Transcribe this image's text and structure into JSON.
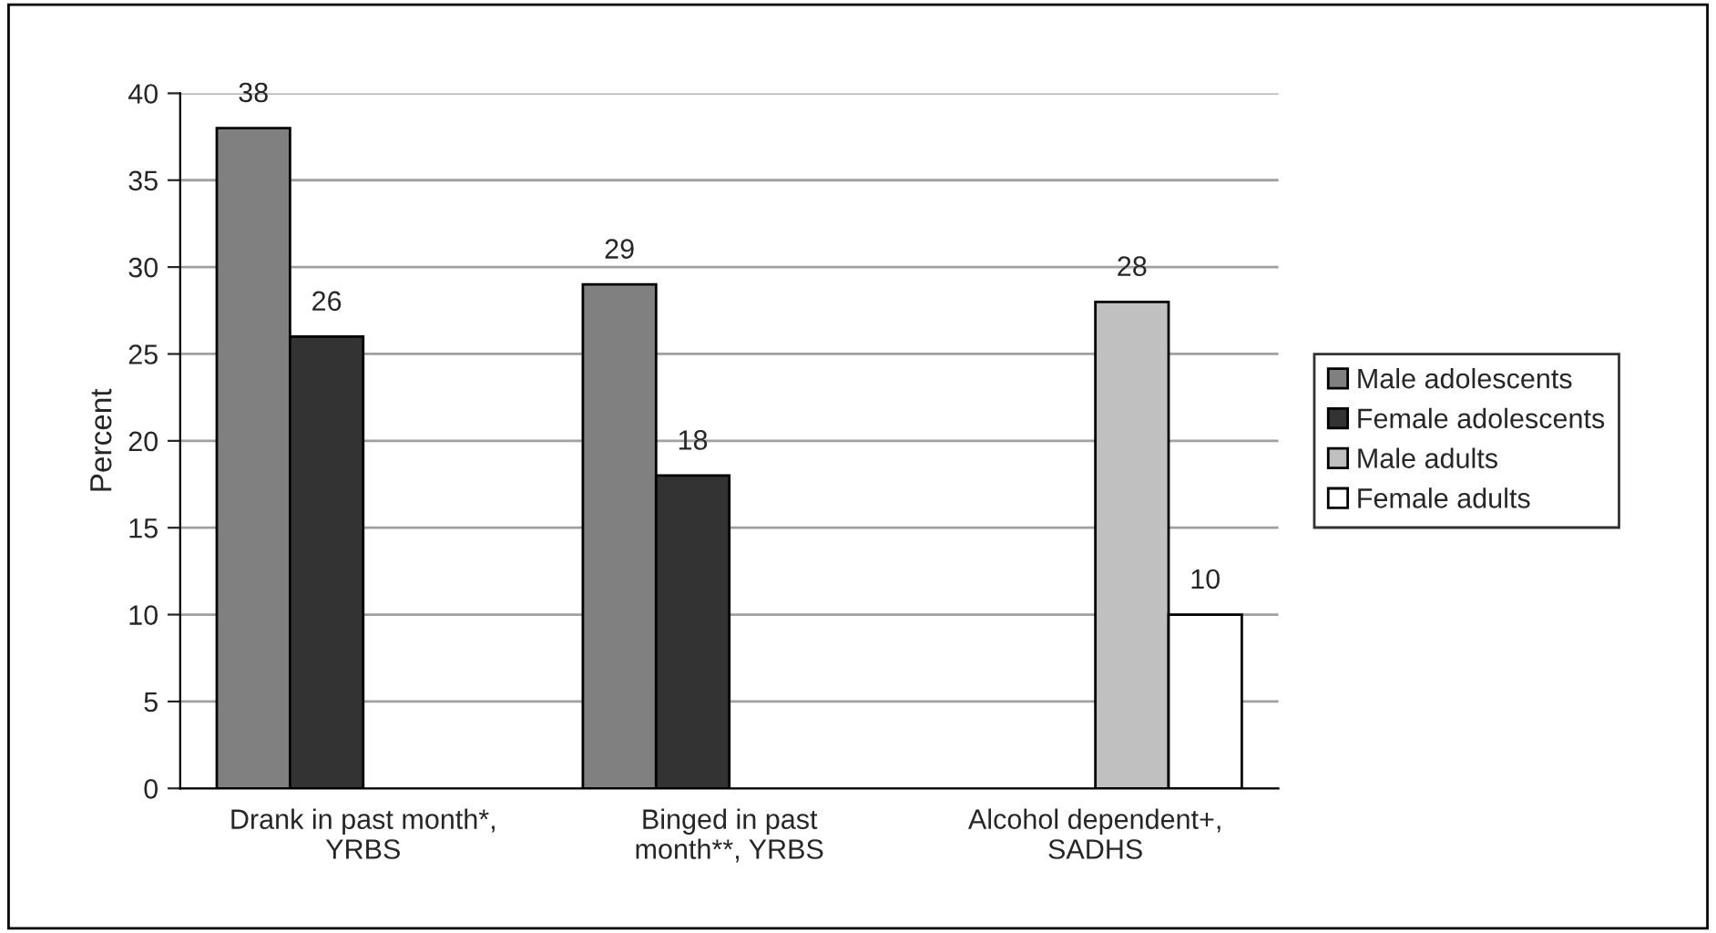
{
  "chart_data": {
    "type": "bar",
    "ylabel": "Percent",
    "categories": [
      "Drank in past month*,\nYRBS",
      "Binged in past\nmonth**, YRBS",
      "Alcohol dependent+,\nSADHS"
    ],
    "series": [
      {
        "name": "Male adolescents",
        "color": "#808080",
        "values": [
          38,
          29,
          null
        ]
      },
      {
        "name": "Female adolescents",
        "color": "#333333",
        "values": [
          26,
          18,
          null
        ]
      },
      {
        "name": "Male adults",
        "color": "#c0c0c0",
        "values": [
          null,
          null,
          28
        ]
      },
      {
        "name": "Female adults",
        "color": "#ffffff",
        "values": [
          null,
          null,
          10
        ]
      }
    ],
    "ylim": [
      0,
      40
    ],
    "yticks": [
      0,
      5,
      10,
      15,
      20,
      25,
      30,
      35,
      40
    ],
    "grid": "y",
    "legend": "right",
    "data_labels": true
  }
}
